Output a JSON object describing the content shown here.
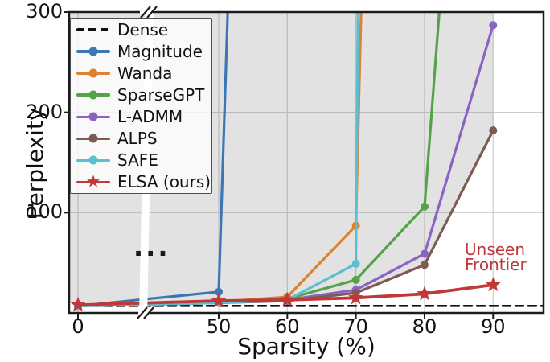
{
  "figure_title": "",
  "axes": {
    "xlabel": "Sparsity (%)",
    "ylabel": "Perplexity",
    "x_tick_labels": [
      "0",
      "50",
      "60",
      "70",
      "80",
      "90"
    ],
    "y_tick_labels": [
      "100",
      "200",
      "300"
    ]
  },
  "legend": {
    "items": [
      {
        "label": "Dense"
      },
      {
        "label": "Magnitude"
      },
      {
        "label": "Wanda"
      },
      {
        "label": "SparseGPT"
      },
      {
        "label": "L-ADMM"
      },
      {
        "label": "ALPS"
      },
      {
        "label": "SAFE"
      },
      {
        "label": "ELSA (ours)"
      }
    ]
  },
  "annotations": {
    "ellipsis": "...",
    "unseen_frontier": {
      "line1": "Unseen",
      "line2": "Frontier",
      "color": "#BE3A3C"
    }
  },
  "chart_data": {
    "type": "line",
    "title": "",
    "xlabel": "Sparsity (%)",
    "ylabel": "Perplexity",
    "x_ticks": [
      0,
      50,
      60,
      70,
      80,
      90
    ],
    "y_ticks": [
      100,
      200,
      300
    ],
    "ylim": [
      0,
      300
    ],
    "x_axis_break": {
      "between": [
        0,
        50
      ],
      "marker": "//"
    },
    "grid": true,
    "grid_color": "#cccccc",
    "legend_position": "upper-left",
    "series": [
      {
        "name": "Dense",
        "color": "#111111",
        "style": "dashed",
        "marker": "none",
        "points": [
          [
            0,
            7
          ],
          [
            97.4,
            7
          ]
        ]
      },
      {
        "name": "Magnitude",
        "color": "#3D76B4",
        "style": "solid",
        "marker": "circle",
        "points": [
          [
            0,
            7
          ],
          [
            50,
            21
          ],
          [
            51.5,
            340
          ]
        ],
        "note": "off-scale above 300 after 50%"
      },
      {
        "name": "Wanda",
        "color": "#E0812F",
        "style": "solid",
        "marker": "circle",
        "points": [
          [
            0,
            7
          ],
          [
            50,
            11
          ],
          [
            60,
            16
          ],
          [
            70,
            87
          ],
          [
            70.9,
            340
          ]
        ],
        "note": "off-scale above 300 after 70%"
      },
      {
        "name": "SparseGPT",
        "color": "#55A348",
        "style": "solid",
        "marker": "circle",
        "points": [
          [
            0,
            7
          ],
          [
            50,
            10
          ],
          [
            60,
            14
          ],
          [
            70,
            33
          ],
          [
            80,
            106
          ],
          [
            82.6,
            340
          ]
        ],
        "note": "off-scale above 300 after 80%"
      },
      {
        "name": "L-ADMM",
        "color": "#8B63C5",
        "style": "solid",
        "marker": "circle",
        "points": [
          [
            0,
            7
          ],
          [
            50,
            10
          ],
          [
            60,
            13
          ],
          [
            70,
            23
          ],
          [
            80,
            59
          ],
          [
            90,
            287
          ]
        ]
      },
      {
        "name": "ALPS",
        "color": "#7E5B52",
        "style": "solid",
        "marker": "circle",
        "points": [
          [
            0,
            7
          ],
          [
            50,
            10
          ],
          [
            60,
            12
          ],
          [
            70,
            20
          ],
          [
            80,
            48
          ],
          [
            90,
            182
          ]
        ]
      },
      {
        "name": "SAFE",
        "color": "#5BBFD1",
        "style": "solid",
        "marker": "circle",
        "points": [
          [
            0,
            7
          ],
          [
            50,
            10
          ],
          [
            60,
            13
          ],
          [
            70,
            49
          ],
          [
            70.35,
            340
          ]
        ],
        "note": "off-scale above 300 after 70%"
      },
      {
        "name": "ELSA (ours)",
        "color": "#C13838",
        "style": "solid",
        "marker": "star",
        "points": [
          [
            0,
            8
          ],
          [
            50,
            12
          ],
          [
            60,
            13
          ],
          [
            70,
            15
          ],
          [
            80,
            19
          ],
          [
            90,
            28
          ]
        ]
      }
    ],
    "shaded_region": {
      "meaning": "area above prior-method frontier",
      "fill": "rgba(125,125,125,0.22)",
      "envelope": [
        [
          0,
          11
        ],
        [
          50,
          12.5
        ],
        [
          60,
          13.5
        ],
        [
          70,
          20
        ],
        [
          80,
          48
        ],
        [
          90,
          182
        ],
        [
          90,
          300
        ]
      ]
    }
  }
}
